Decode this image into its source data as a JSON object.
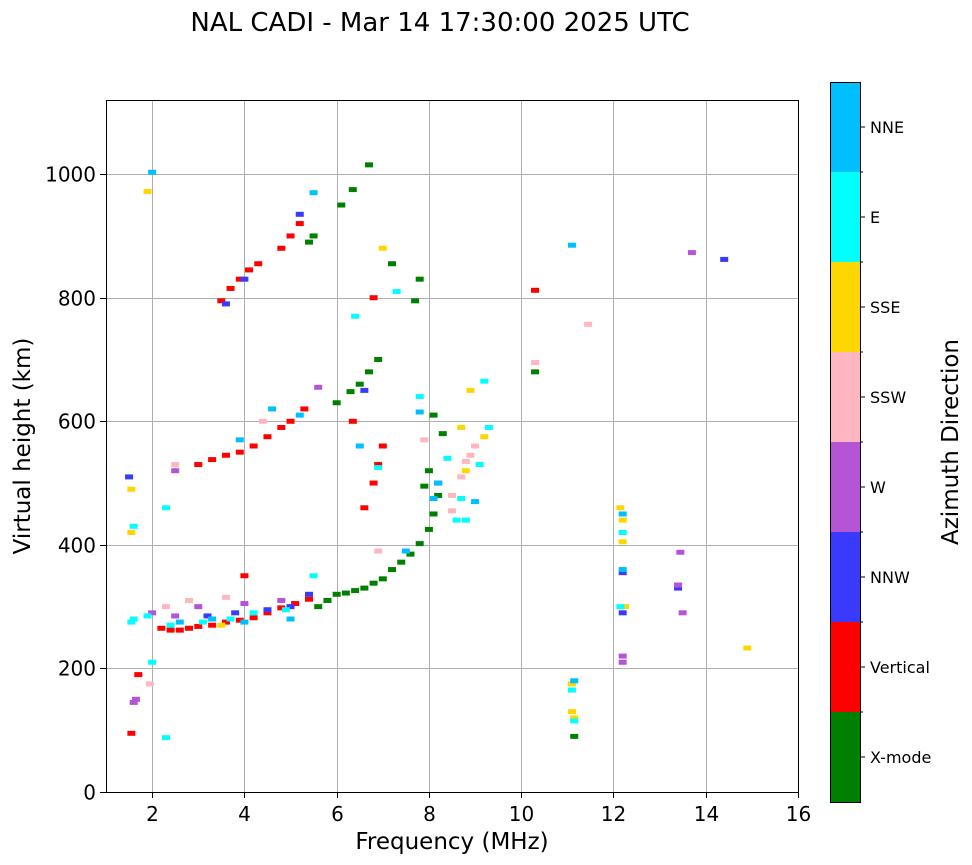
{
  "chart_data": {
    "type": "scatter",
    "title": "NAL CADI - Mar 14 17:30:00 2025 UTC",
    "xlabel": "Frequency (MHz)",
    "ylabel": "Virtual height (km)",
    "xlim": [
      1,
      16
    ],
    "ylim": [
      0,
      1120
    ],
    "xticks": [
      2,
      4,
      6,
      8,
      10,
      12,
      14,
      16
    ],
    "yticks": [
      0,
      200,
      400,
      600,
      800,
      1000
    ],
    "grid": true,
    "colorbar": {
      "title": "Azimuth Direction",
      "categories": [
        {
          "name": "X-mode",
          "color": "#008000"
        },
        {
          "name": "Vertical",
          "color": "#ff0000"
        },
        {
          "name": "NNW",
          "color": "#3a3aff"
        },
        {
          "name": "W",
          "color": "#b554d5"
        },
        {
          "name": "SSW",
          "color": "#ffb6c1"
        },
        {
          "name": "SSE",
          "color": "#ffd700"
        },
        {
          "name": "E",
          "color": "#00ffff"
        },
        {
          "name": "NNE",
          "color": "#00bfff"
        }
      ]
    },
    "series": [
      {
        "name": "X-mode",
        "points": [
          [
            6.0,
            320
          ],
          [
            6.2,
            322
          ],
          [
            6.4,
            326
          ],
          [
            6.6,
            330
          ],
          [
            6.8,
            338
          ],
          [
            7.0,
            345
          ],
          [
            7.2,
            360
          ],
          [
            7.4,
            372
          ],
          [
            7.6,
            385
          ],
          [
            7.8,
            402
          ],
          [
            8.0,
            425
          ],
          [
            8.1,
            450
          ],
          [
            8.2,
            480
          ],
          [
            5.6,
            300
          ],
          [
            5.8,
            310
          ],
          [
            6.0,
            630
          ],
          [
            6.3,
            648
          ],
          [
            6.5,
            660
          ],
          [
            6.7,
            680
          ],
          [
            6.9,
            700
          ],
          [
            7.8,
            830
          ],
          [
            7.7,
            795
          ],
          [
            6.1,
            950
          ],
          [
            6.35,
            975
          ],
          [
            6.7,
            1015
          ],
          [
            5.4,
            890
          ],
          [
            5.5,
            900
          ],
          [
            7.2,
            855
          ],
          [
            8.3,
            580
          ],
          [
            8.1,
            610
          ],
          [
            8.0,
            520
          ],
          [
            7.9,
            495
          ],
          [
            10.3,
            680
          ],
          [
            11.15,
            90
          ]
        ]
      },
      {
        "name": "Vertical",
        "points": [
          [
            2.2,
            265
          ],
          [
            2.4,
            262
          ],
          [
            2.6,
            262
          ],
          [
            2.8,
            265
          ],
          [
            3.0,
            268
          ],
          [
            3.3,
            270
          ],
          [
            3.6,
            275
          ],
          [
            3.9,
            278
          ],
          [
            4.2,
            282
          ],
          [
            4.5,
            290
          ],
          [
            4.8,
            298
          ],
          [
            5.1,
            305
          ],
          [
            5.4,
            312
          ],
          [
            3.0,
            530
          ],
          [
            3.3,
            538
          ],
          [
            3.6,
            545
          ],
          [
            3.9,
            550
          ],
          [
            4.2,
            560
          ],
          [
            4.5,
            575
          ],
          [
            4.8,
            590
          ],
          [
            5.0,
            600
          ],
          [
            5.3,
            620
          ],
          [
            3.5,
            795
          ],
          [
            3.7,
            815
          ],
          [
            3.9,
            830
          ],
          [
            4.1,
            845
          ],
          [
            4.3,
            855
          ],
          [
            4.8,
            880
          ],
          [
            5.0,
            900
          ],
          [
            5.2,
            920
          ],
          [
            1.55,
            95
          ],
          [
            1.7,
            190
          ],
          [
            6.8,
            800
          ],
          [
            6.35,
            600
          ],
          [
            6.9,
            530
          ],
          [
            10.3,
            812
          ],
          [
            6.6,
            460
          ],
          [
            6.8,
            500
          ],
          [
            7.0,
            560
          ],
          [
            4.0,
            350
          ]
        ]
      },
      {
        "name": "NNW",
        "points": [
          [
            3.2,
            285
          ],
          [
            3.8,
            290
          ],
          [
            4.5,
            295
          ],
          [
            5.0,
            300
          ],
          [
            5.4,
            320
          ],
          [
            3.6,
            790
          ],
          [
            4.0,
            830
          ],
          [
            5.2,
            935
          ],
          [
            12.2,
            290
          ],
          [
            12.2,
            355
          ],
          [
            13.4,
            330
          ],
          [
            14.4,
            862
          ],
          [
            6.6,
            650
          ],
          [
            8.2,
            500
          ],
          [
            1.5,
            510
          ]
        ]
      },
      {
        "name": "W",
        "points": [
          [
            2.0,
            290
          ],
          [
            2.5,
            285
          ],
          [
            3.0,
            300
          ],
          [
            4.0,
            305
          ],
          [
            4.8,
            310
          ],
          [
            1.6,
            145
          ],
          [
            1.65,
            150
          ],
          [
            2.5,
            520
          ],
          [
            5.6,
            655
          ],
          [
            12.2,
            210
          ],
          [
            13.4,
            335
          ],
          [
            13.45,
            388
          ],
          [
            13.5,
            290
          ],
          [
            13.7,
            873
          ],
          [
            12.2,
            220
          ]
        ]
      },
      {
        "name": "SSW",
        "points": [
          [
            2.3,
            300
          ],
          [
            2.8,
            310
          ],
          [
            3.6,
            315
          ],
          [
            1.95,
            175
          ],
          [
            2.5,
            530
          ],
          [
            4.4,
            600
          ],
          [
            7.9,
            570
          ],
          [
            8.5,
            480
          ],
          [
            8.7,
            510
          ],
          [
            8.8,
            535
          ],
          [
            8.9,
            545
          ],
          [
            9.0,
            560
          ],
          [
            10.3,
            695
          ],
          [
            11.45,
            757
          ],
          [
            8.5,
            455
          ],
          [
            6.9,
            390
          ]
        ]
      },
      {
        "name": "SSE",
        "points": [
          [
            1.55,
            490
          ],
          [
            1.9,
            972
          ],
          [
            3.5,
            270
          ],
          [
            7.0,
            880
          ],
          [
            8.7,
            590
          ],
          [
            8.9,
            650
          ],
          [
            9.2,
            575
          ],
          [
            11.1,
            130
          ],
          [
            11.15,
            120
          ],
          [
            11.1,
            175
          ],
          [
            12.2,
            440
          ],
          [
            12.2,
            405
          ],
          [
            12.25,
            300
          ],
          [
            14.9,
            233
          ],
          [
            8.8,
            520
          ],
          [
            1.55,
            420
          ],
          [
            12.15,
            460
          ]
        ]
      },
      {
        "name": "E",
        "points": [
          [
            1.55,
            275
          ],
          [
            1.6,
            280
          ],
          [
            1.9,
            285
          ],
          [
            2.4,
            270
          ],
          [
            3.1,
            275
          ],
          [
            3.7,
            280
          ],
          [
            4.2,
            290
          ],
          [
            4.9,
            295
          ],
          [
            5.5,
            350
          ],
          [
            2.0,
            210
          ],
          [
            2.3,
            88
          ],
          [
            2.3,
            460
          ],
          [
            6.4,
            770
          ],
          [
            6.9,
            525
          ],
          [
            7.8,
            640
          ],
          [
            8.4,
            540
          ],
          [
            8.6,
            440
          ],
          [
            8.8,
            440
          ],
          [
            9.1,
            530
          ],
          [
            9.2,
            665
          ],
          [
            9.3,
            590
          ],
          [
            12.2,
            420
          ],
          [
            12.15,
            300
          ],
          [
            11.1,
            165
          ],
          [
            11.15,
            115
          ],
          [
            1.6,
            430
          ],
          [
            7.3,
            810
          ],
          [
            8.7,
            475
          ]
        ]
      },
      {
        "name": "NNE",
        "points": [
          [
            2.0,
            1003
          ],
          [
            2.6,
            275
          ],
          [
            3.3,
            280
          ],
          [
            4.0,
            275
          ],
          [
            5.0,
            280
          ],
          [
            5.5,
            970
          ],
          [
            3.9,
            570
          ],
          [
            4.6,
            620
          ],
          [
            5.2,
            610
          ],
          [
            6.5,
            560
          ],
          [
            7.8,
            615
          ],
          [
            8.1,
            475
          ],
          [
            8.2,
            500
          ],
          [
            9.0,
            470
          ],
          [
            11.1,
            885
          ],
          [
            12.2,
            450
          ],
          [
            12.2,
            360
          ],
          [
            11.15,
            180
          ],
          [
            7.5,
            390
          ]
        ]
      }
    ]
  }
}
